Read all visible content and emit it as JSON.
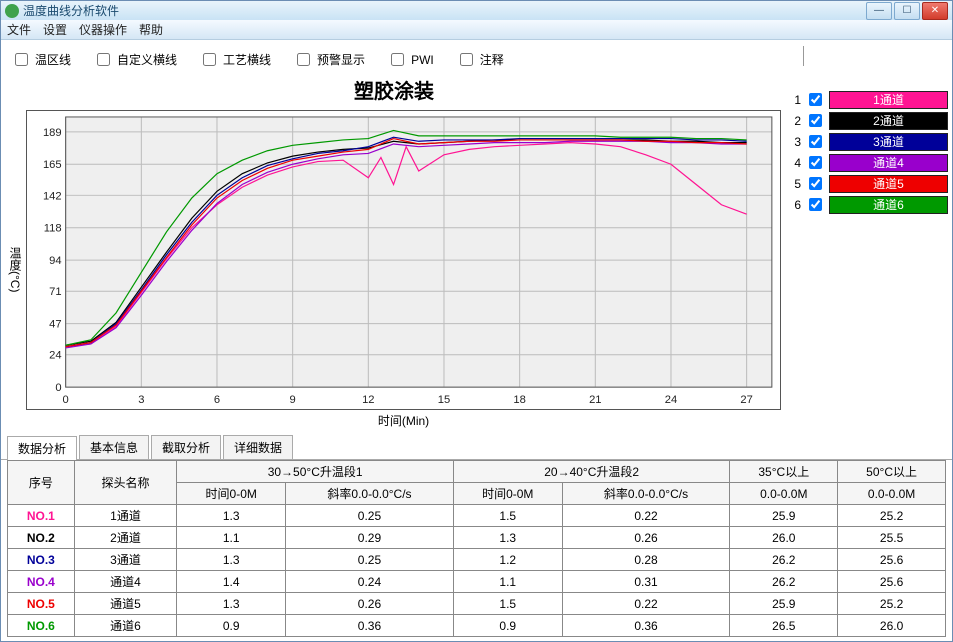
{
  "window": {
    "title": "温度曲线分析软件"
  },
  "menu": {
    "file": "文件",
    "settings": "设置",
    "instrument": "仪器操作",
    "help": "帮助"
  },
  "options": [
    {
      "key": "zone",
      "label": "温区线"
    },
    {
      "key": "custom",
      "label": "自定义横线"
    },
    {
      "key": "process",
      "label": "工艺横线"
    },
    {
      "key": "alert",
      "label": "预警显示"
    },
    {
      "key": "pwi",
      "label": "PWI"
    },
    {
      "key": "note",
      "label": "注释"
    }
  ],
  "chart": {
    "title": "塑胶涂装",
    "x_label": "时间(Min)",
    "y_label": "温度(°C)",
    "bg": "#efefef",
    "grid_color": "#bcbcbc",
    "x_min": 0,
    "x_max": 28,
    "x_ticks": [
      0,
      3,
      6,
      9,
      12,
      15,
      18,
      21,
      24,
      27
    ],
    "y_min": 0,
    "y_max": 200,
    "y_ticks": [
      0,
      24,
      47,
      71,
      94,
      118,
      142,
      165,
      189
    ],
    "series": [
      {
        "name": "1通道",
        "color": "#ff1493",
        "width": 1.2,
        "data": [
          [
            0,
            30
          ],
          [
            1,
            32
          ],
          [
            2,
            45
          ],
          [
            3,
            70
          ],
          [
            4,
            95
          ],
          [
            5,
            118
          ],
          [
            6,
            135
          ],
          [
            7,
            148
          ],
          [
            8,
            157
          ],
          [
            9,
            163
          ],
          [
            10,
            167
          ],
          [
            11,
            168
          ],
          [
            12,
            155
          ],
          [
            12.5,
            170
          ],
          [
            13,
            150
          ],
          [
            13.5,
            178
          ],
          [
            14,
            160
          ],
          [
            15,
            172
          ],
          [
            16,
            176
          ],
          [
            17,
            178
          ],
          [
            18,
            179
          ],
          [
            19,
            180
          ],
          [
            20,
            181
          ],
          [
            21,
            180
          ],
          [
            22,
            178
          ],
          [
            23,
            172
          ],
          [
            24,
            165
          ],
          [
            25,
            150
          ],
          [
            26,
            135
          ],
          [
            27,
            128
          ]
        ]
      },
      {
        "name": "2通道",
        "color": "#000000",
        "width": 1.2,
        "data": [
          [
            0,
            31
          ],
          [
            1,
            34
          ],
          [
            2,
            48
          ],
          [
            3,
            74
          ],
          [
            4,
            100
          ],
          [
            5,
            125
          ],
          [
            6,
            145
          ],
          [
            7,
            158
          ],
          [
            8,
            166
          ],
          [
            9,
            171
          ],
          [
            10,
            174
          ],
          [
            11,
            176
          ],
          [
            12,
            177
          ],
          [
            13,
            182
          ],
          [
            14,
            180
          ],
          [
            15,
            181
          ],
          [
            16,
            182
          ],
          [
            17,
            183
          ],
          [
            18,
            183
          ],
          [
            19,
            183
          ],
          [
            20,
            183
          ],
          [
            21,
            183
          ],
          [
            22,
            183
          ],
          [
            23,
            183
          ],
          [
            24,
            182
          ],
          [
            25,
            182
          ],
          [
            26,
            181
          ],
          [
            27,
            181
          ]
        ]
      },
      {
        "name": "3通道",
        "color": "#000099",
        "width": 1.2,
        "data": [
          [
            0,
            30
          ],
          [
            1,
            33
          ],
          [
            2,
            47
          ],
          [
            3,
            72
          ],
          [
            4,
            98
          ],
          [
            5,
            122
          ],
          [
            6,
            142
          ],
          [
            7,
            155
          ],
          [
            8,
            164
          ],
          [
            9,
            169
          ],
          [
            10,
            173
          ],
          [
            11,
            175
          ],
          [
            12,
            178
          ],
          [
            13,
            185
          ],
          [
            14,
            182
          ],
          [
            15,
            183
          ],
          [
            16,
            183
          ],
          [
            17,
            183
          ],
          [
            18,
            184
          ],
          [
            19,
            184
          ],
          [
            20,
            184
          ],
          [
            21,
            184
          ],
          [
            22,
            184
          ],
          [
            23,
            184
          ],
          [
            24,
            184
          ],
          [
            25,
            183
          ],
          [
            26,
            183
          ],
          [
            27,
            182
          ]
        ]
      },
      {
        "name": "通道4",
        "color": "#9900cc",
        "width": 1.2,
        "data": [
          [
            0,
            29
          ],
          [
            1,
            32
          ],
          [
            2,
            44
          ],
          [
            3,
            68
          ],
          [
            4,
            93
          ],
          [
            5,
            116
          ],
          [
            6,
            136
          ],
          [
            7,
            150
          ],
          [
            8,
            159
          ],
          [
            9,
            165
          ],
          [
            10,
            169
          ],
          [
            11,
            172
          ],
          [
            12,
            173
          ],
          [
            13,
            180
          ],
          [
            14,
            178
          ],
          [
            15,
            179
          ],
          [
            16,
            180
          ],
          [
            17,
            181
          ],
          [
            18,
            181
          ],
          [
            19,
            181
          ],
          [
            20,
            182
          ],
          [
            21,
            182
          ],
          [
            22,
            182
          ],
          [
            23,
            182
          ],
          [
            24,
            181
          ],
          [
            25,
            181
          ],
          [
            26,
            180
          ],
          [
            27,
            180
          ]
        ]
      },
      {
        "name": "通道5",
        "color": "#ee0000",
        "width": 1.2,
        "data": [
          [
            0,
            30
          ],
          [
            1,
            33
          ],
          [
            2,
            46
          ],
          [
            3,
            71
          ],
          [
            4,
            96
          ],
          [
            5,
            120
          ],
          [
            6,
            140
          ],
          [
            7,
            153
          ],
          [
            8,
            162
          ],
          [
            9,
            168
          ],
          [
            10,
            171
          ],
          [
            11,
            174
          ],
          [
            12,
            176
          ],
          [
            13,
            184
          ],
          [
            14,
            180
          ],
          [
            15,
            181
          ],
          [
            16,
            182
          ],
          [
            17,
            182
          ],
          [
            18,
            183
          ],
          [
            19,
            183
          ],
          [
            20,
            183
          ],
          [
            21,
            183
          ],
          [
            22,
            183
          ],
          [
            23,
            182
          ],
          [
            24,
            182
          ],
          [
            25,
            181
          ],
          [
            26,
            181
          ],
          [
            27,
            180
          ]
        ]
      },
      {
        "name": "通道6",
        "color": "#009900",
        "width": 1.2,
        "data": [
          [
            0,
            31
          ],
          [
            1,
            35
          ],
          [
            2,
            55
          ],
          [
            3,
            85
          ],
          [
            4,
            115
          ],
          [
            5,
            140
          ],
          [
            6,
            158
          ],
          [
            7,
            168
          ],
          [
            8,
            175
          ],
          [
            9,
            179
          ],
          [
            10,
            181
          ],
          [
            11,
            183
          ],
          [
            12,
            184
          ],
          [
            13,
            190
          ],
          [
            14,
            186
          ],
          [
            15,
            186
          ],
          [
            16,
            186
          ],
          [
            17,
            186
          ],
          [
            18,
            186
          ],
          [
            19,
            186
          ],
          [
            20,
            186
          ],
          [
            21,
            186
          ],
          [
            22,
            185
          ],
          [
            23,
            185
          ],
          [
            24,
            185
          ],
          [
            25,
            184
          ],
          [
            26,
            184
          ],
          [
            27,
            183
          ]
        ]
      }
    ]
  },
  "channels": [
    {
      "n": "1",
      "label": "1通道",
      "color": "#ff1493",
      "checked": true
    },
    {
      "n": "2",
      "label": "2通道",
      "color": "#000000",
      "checked": true
    },
    {
      "n": "3",
      "label": "3通道",
      "color": "#000099",
      "checked": true
    },
    {
      "n": "4",
      "label": "通道4",
      "color": "#9900cc",
      "checked": true
    },
    {
      "n": "5",
      "label": "通道5",
      "color": "#ee0000",
      "checked": true
    },
    {
      "n": "6",
      "label": "通道6",
      "color": "#009900",
      "checked": true
    }
  ],
  "tabs": {
    "active": 0,
    "items": [
      "数据分析",
      "基本信息",
      "截取分析",
      "详细数据"
    ]
  },
  "table": {
    "head": {
      "seq": "序号",
      "probe": "探头名称",
      "g1": "30→50°C升温段1",
      "g1a": "时间0-0M",
      "g1b": "斜率0.0-0.0°C/s",
      "g2": "20→40°C升温段2",
      "g2a": "时间0-0M",
      "g2b": "斜率0.0-0.0°C/s",
      "c35": "35°C以上",
      "c35s": "0.0-0.0M",
      "c50": "50°C以上",
      "c50s": "0.0-0.0M"
    },
    "rows": [
      {
        "no": "NO.1",
        "color": "#ff1493",
        "probe": "1通道",
        "a": "1.3",
        "b": "0.25",
        "c": "1.5",
        "d": "0.22",
        "e": "25.9",
        "f": "25.2"
      },
      {
        "no": "NO.2",
        "color": "#000000",
        "probe": "2通道",
        "a": "1.1",
        "b": "0.29",
        "c": "1.3",
        "d": "0.26",
        "e": "26.0",
        "f": "25.5"
      },
      {
        "no": "NO.3",
        "color": "#000099",
        "probe": "3通道",
        "a": "1.3",
        "b": "0.25",
        "c": "1.2",
        "d": "0.28",
        "e": "26.2",
        "f": "25.6"
      },
      {
        "no": "NO.4",
        "color": "#9900cc",
        "probe": "通道4",
        "a": "1.4",
        "b": "0.24",
        "c": "1.1",
        "d": "0.31",
        "e": "26.2",
        "f": "25.6"
      },
      {
        "no": "NO.5",
        "color": "#ee0000",
        "probe": "通道5",
        "a": "1.3",
        "b": "0.26",
        "c": "1.5",
        "d": "0.22",
        "e": "25.9",
        "f": "25.2"
      },
      {
        "no": "NO.6",
        "color": "#009900",
        "probe": "通道6",
        "a": "0.9",
        "b": "0.36",
        "c": "0.9",
        "d": "0.36",
        "e": "26.5",
        "f": "26.0"
      }
    ]
  }
}
